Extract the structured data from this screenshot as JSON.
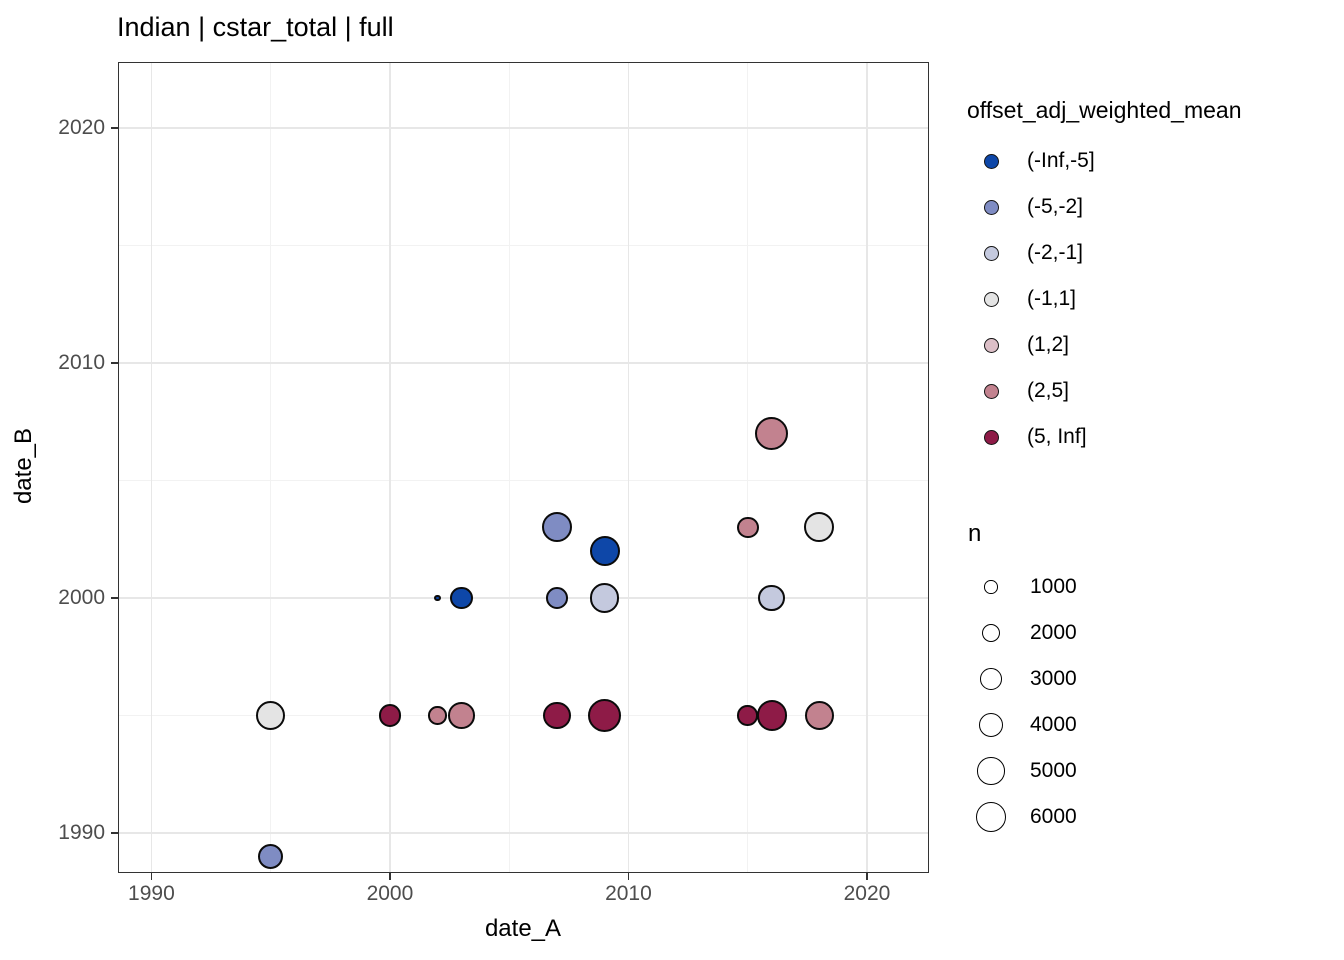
{
  "chart_data": {
    "type": "scatter",
    "title": "Indian | cstar_total | full",
    "xlabel": "date_A",
    "ylabel": "date_B",
    "x_ticks": [
      1990,
      2000,
      2010,
      2020
    ],
    "y_ticks": [
      1990,
      2000,
      2010,
      2020
    ],
    "x_minor_ticks": [
      1995,
      2005,
      2015
    ],
    "y_minor_ticks": [
      1995,
      2005,
      2015
    ],
    "xlim": [
      1988.6,
      2022.6
    ],
    "ylim": [
      1988.3,
      2022.8
    ],
    "grid": true,
    "legend_position": "right",
    "color_legend": {
      "title": "offset_adj_weighted_mean",
      "items": [
        {
          "label": "(-Inf,-5]",
          "color": "#0e47a8"
        },
        {
          "label": "(-5,-2]",
          "color": "#7f8cc3"
        },
        {
          "label": "(-2,-1]",
          "color": "#c4c9de"
        },
        {
          "label": "(-1,1]",
          "color": "#e4e4e4"
        },
        {
          "label": "(1,2]",
          "color": "#dcbfc7"
        },
        {
          "label": "(2,5]",
          "color": "#c2828f"
        },
        {
          "label": "(5, Inf]",
          "color": "#8e1b47"
        }
      ]
    },
    "size_legend": {
      "title": "n",
      "items": [
        1000,
        2000,
        3000,
        4000,
        5000,
        6000
      ]
    },
    "size_scale": {
      "r_offset": 1.0,
      "r_per_sqrt_n": 0.181
    },
    "points": [
      {
        "x": 1995,
        "y": 1989,
        "n": 4200,
        "bin": "(-5,-2]"
      },
      {
        "x": 1995,
        "y": 1995,
        "n": 5700,
        "bin": "(-1,1]"
      },
      {
        "x": 2000,
        "y": 1995,
        "n": 3200,
        "bin": "(5, Inf]"
      },
      {
        "x": 2002,
        "y": 2000,
        "n": 160,
        "bin": "(-Inf,-5]"
      },
      {
        "x": 2002,
        "y": 1995,
        "n": 2100,
        "bin": "(2,5]"
      },
      {
        "x": 2003,
        "y": 2000,
        "n": 3200,
        "bin": "(-Inf,-5]"
      },
      {
        "x": 2003,
        "y": 1995,
        "n": 4600,
        "bin": "(2,5]"
      },
      {
        "x": 2007,
        "y": 2003,
        "n": 6000,
        "bin": "(-5,-2]"
      },
      {
        "x": 2007,
        "y": 2000,
        "n": 3000,
        "bin": "(-5,-2]"
      },
      {
        "x": 2007,
        "y": 1995,
        "n": 5100,
        "bin": "(5, Inf]"
      },
      {
        "x": 2009,
        "y": 2002,
        "n": 6000,
        "bin": "(-Inf,-5]"
      },
      {
        "x": 2009,
        "y": 2000,
        "n": 5700,
        "bin": "(-2,-1]"
      },
      {
        "x": 2009,
        "y": 1995,
        "n": 7500,
        "bin": "(5, Inf]"
      },
      {
        "x": 2015,
        "y": 2003,
        "n": 3000,
        "bin": "(2,5]"
      },
      {
        "x": 2015,
        "y": 1995,
        "n": 2600,
        "bin": "(5, Inf]"
      },
      {
        "x": 2016,
        "y": 2007,
        "n": 7500,
        "bin": "(2,5]"
      },
      {
        "x": 2016,
        "y": 2000,
        "n": 4600,
        "bin": "(-2,-1]"
      },
      {
        "x": 2016,
        "y": 1995,
        "n": 6000,
        "bin": "(5, Inf]"
      },
      {
        "x": 2018,
        "y": 2003,
        "n": 6000,
        "bin": "(-1,1]"
      },
      {
        "x": 2018,
        "y": 1995,
        "n": 5700,
        "bin": "(2,5]"
      }
    ]
  }
}
